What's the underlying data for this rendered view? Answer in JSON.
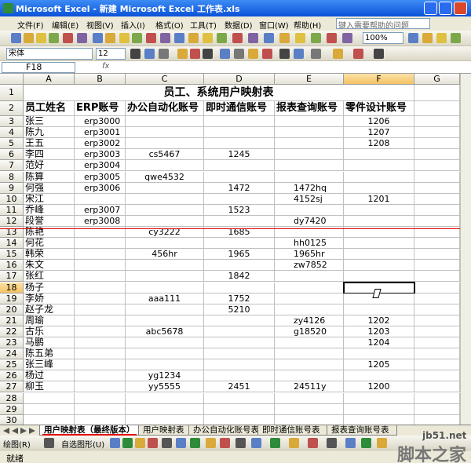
{
  "window": {
    "title": "Microsoft Excel - 新建 Microsoft Excel 工作表.xls",
    "help_box": "键入需要帮助的问题"
  },
  "menu": [
    "文件(F)",
    "编辑(E)",
    "视图(V)",
    "插入(I)",
    "格式(O)",
    "工具(T)",
    "数据(D)",
    "窗口(W)",
    "帮助(H)"
  ],
  "toolbar": {
    "zoom": "100%",
    "font": "宋体",
    "font_size": "12"
  },
  "formula_bar": {
    "name_box": "F18",
    "fx": "fx"
  },
  "columns": [
    "A",
    "B",
    "C",
    "D",
    "E",
    "F",
    "G"
  ],
  "row_numbers": [
    "1",
    "2",
    "3",
    "4",
    "5",
    "6",
    "7",
    "8",
    "9",
    "10",
    "11",
    "12",
    "13",
    "14",
    "15",
    "16",
    "17",
    "18",
    "19",
    "20",
    "21",
    "22",
    "23",
    "24",
    "25",
    "26",
    "27",
    "28",
    "29",
    "30"
  ],
  "table": {
    "title": "员工、系统用户映射表",
    "header": [
      "员工姓名",
      "ERP账号",
      "办公自动化账号",
      "即时通信账号",
      "报表查询账号",
      "零件设计账号"
    ],
    "rows": [
      [
        "张三",
        "erp3000",
        null,
        null,
        null,
        "1206"
      ],
      [
        "陈九",
        "erp3001",
        null,
        null,
        null,
        "1207"
      ],
      [
        "王五",
        "erp3002",
        null,
        null,
        null,
        "1208"
      ],
      [
        "李四",
        "erp3003",
        "cs5467",
        "1245",
        null,
        null
      ],
      [
        "范好",
        "erp3004",
        null,
        null,
        null,
        null
      ],
      [
        "陈算",
        "erp3005",
        "qwe4532",
        null,
        null,
        null
      ],
      [
        "何强",
        "erp3006",
        null,
        "1472",
        "1472hq",
        null
      ],
      [
        "宋江",
        null,
        null,
        null,
        "4152sj",
        "1201"
      ],
      [
        "乔峰",
        "erp3007",
        null,
        "1523",
        null,
        null
      ],
      [
        "段誉",
        "erp3008",
        null,
        null,
        "dy7420",
        null
      ],
      [
        "陈艳",
        null,
        "cy3222",
        "1685",
        null,
        null
      ],
      [
        "何花",
        null,
        null,
        null,
        "hh0125",
        null
      ],
      [
        "韩荣",
        null,
        "456hr",
        "1965",
        "1965hr",
        null
      ],
      [
        "朱文",
        null,
        null,
        null,
        "zw7852",
        null
      ],
      [
        "张红",
        null,
        null,
        "1842",
        null,
        null
      ],
      [
        "杨子",
        null,
        null,
        null,
        null,
        null
      ],
      [
        "李娇",
        null,
        "aaa111",
        "1752",
        null,
        null
      ],
      [
        "赵子龙",
        null,
        null,
        "5210",
        null,
        null
      ],
      [
        "周瑜",
        null,
        null,
        null,
        "zy4126",
        "1202"
      ],
      [
        "古乐",
        null,
        "abc5678",
        null,
        "g18520",
        "1203"
      ],
      [
        "马鹏",
        null,
        null,
        null,
        null,
        "1204"
      ],
      [
        "陈五弟",
        null,
        null,
        null,
        null,
        null
      ],
      [
        "张三峰",
        null,
        null,
        null,
        null,
        "1205"
      ],
      [
        "杨过",
        null,
        "yg1234",
        null,
        null,
        null
      ],
      [
        "柳玉",
        null,
        "yy5555",
        "2451",
        "24511y",
        "1200"
      ]
    ]
  },
  "sheet_tabs": [
    "用户映射表（最终版本）",
    "用户映射表",
    "办公自动化账号表",
    "即时通信账号表",
    "报表查询账号表"
  ],
  "drawing_toolbar": {
    "draw": "绘图(R)",
    "autoshapes": "自选图形(U)"
  },
  "status": "就绪",
  "watermark": {
    "site": "jb51.net",
    "name": "脚本之家"
  }
}
